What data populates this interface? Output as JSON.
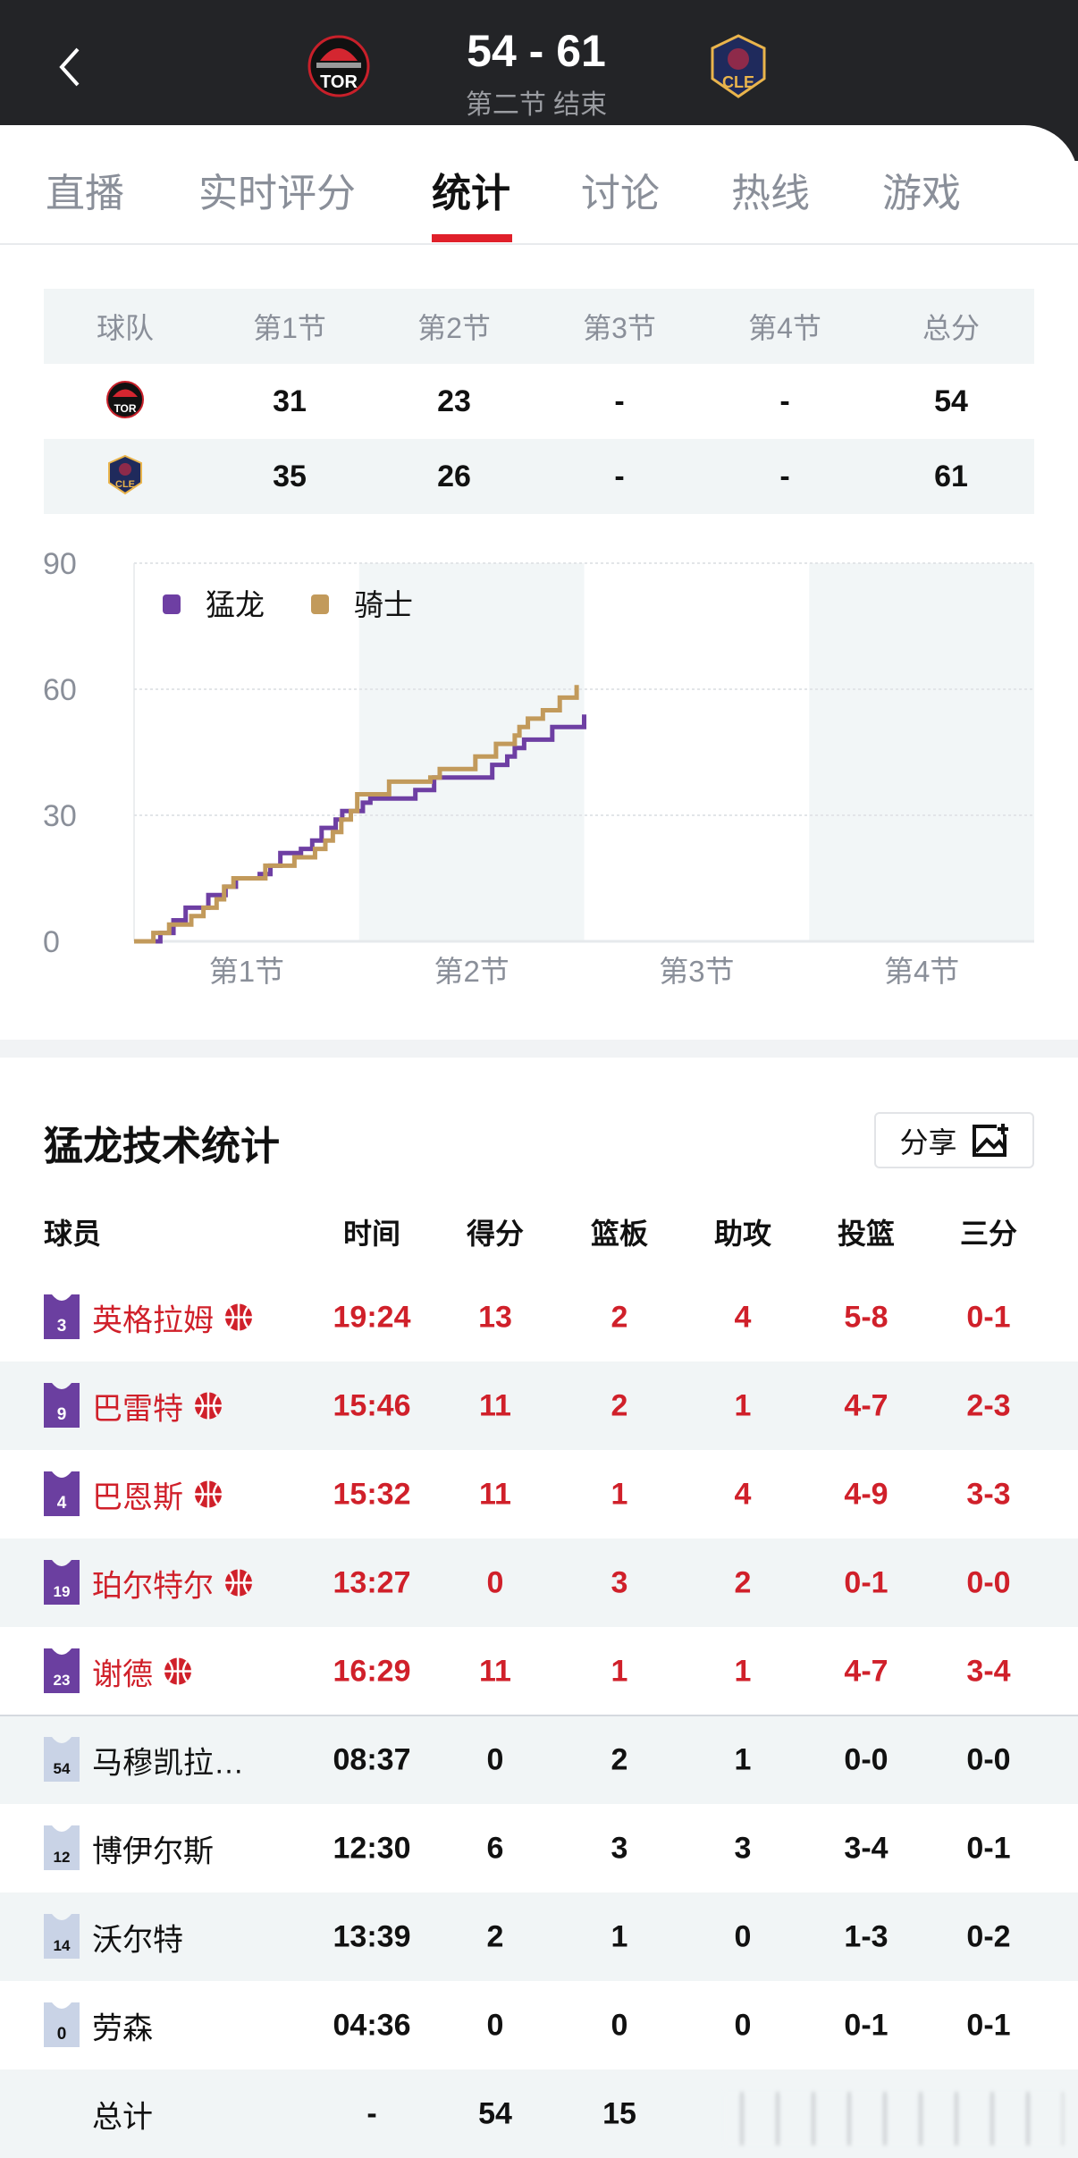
{
  "header": {
    "score": "54 - 61",
    "status": "第二节 结束",
    "home_logo_text": "TOR",
    "away_logo_text": "CLE",
    "back_icon": "chevron-left-icon"
  },
  "tabs": [
    {
      "label": "直播"
    },
    {
      "label": "实时评分"
    },
    {
      "label": "统计",
      "active": true
    },
    {
      "label": "讨论"
    },
    {
      "label": "热线"
    },
    {
      "label": "游戏"
    }
  ],
  "quarter_table": {
    "headers": [
      "球队",
      "第1节",
      "第2节",
      "第3节",
      "第4节",
      "总分"
    ],
    "rows": [
      {
        "team": "TOR",
        "values": [
          "31",
          "23",
          "-",
          "-",
          "54"
        ]
      },
      {
        "team": "CLE",
        "values": [
          "35",
          "26",
          "-",
          "-",
          "61"
        ]
      }
    ]
  },
  "chart_data": {
    "type": "line",
    "step": true,
    "x_unit": "minutes",
    "xlim": [
      0,
      48
    ],
    "ylim": [
      0,
      90
    ],
    "yticks": [
      "0",
      "30",
      "60",
      "90"
    ],
    "xtick_labels": [
      "第1节",
      "第2节",
      "第3节",
      "第4节"
    ],
    "grid": true,
    "legend_position": "top-left",
    "series": [
      {
        "name": "猛龙",
        "color": "#6e3fa3",
        "points": [
          [
            0,
            0
          ],
          [
            1.4,
            2
          ],
          [
            2.1,
            5
          ],
          [
            2.75,
            8
          ],
          [
            3.96,
            11
          ],
          [
            4.88,
            13
          ],
          [
            5.43,
            15
          ],
          [
            6.7,
            16
          ],
          [
            7.27,
            18
          ],
          [
            7.8,
            21
          ],
          [
            8.9,
            22
          ],
          [
            9.5,
            24
          ],
          [
            10.0,
            27
          ],
          [
            10.75,
            29
          ],
          [
            11.1,
            31
          ],
          [
            12.2,
            33
          ],
          [
            12.6,
            34
          ],
          [
            15.0,
            36
          ],
          [
            16.0,
            39
          ],
          [
            19.1,
            42
          ],
          [
            19.9,
            44
          ],
          [
            20.3,
            46
          ],
          [
            20.8,
            48
          ],
          [
            22.3,
            51
          ],
          [
            24.0,
            54
          ]
        ]
      },
      {
        "name": "骑士",
        "color": "#c29a5b",
        "points": [
          [
            0,
            0
          ],
          [
            1.03,
            2
          ],
          [
            1.87,
            4
          ],
          [
            3.05,
            6
          ],
          [
            3.7,
            8
          ],
          [
            4.4,
            10
          ],
          [
            4.8,
            13
          ],
          [
            5.3,
            15
          ],
          [
            7.0,
            18
          ],
          [
            8.55,
            20
          ],
          [
            9.65,
            22
          ],
          [
            10.2,
            24
          ],
          [
            10.6,
            26
          ],
          [
            11.05,
            29
          ],
          [
            11.56,
            31
          ],
          [
            11.9,
            35
          ],
          [
            13.6,
            38
          ],
          [
            15.8,
            39
          ],
          [
            16.3,
            41
          ],
          [
            18.2,
            44
          ],
          [
            19.3,
            47
          ],
          [
            20.3,
            49
          ],
          [
            20.55,
            51
          ],
          [
            21.0,
            53
          ],
          [
            21.8,
            55
          ],
          [
            22.7,
            58
          ],
          [
            23.6,
            61
          ]
        ]
      }
    ]
  },
  "stats": {
    "title": "猛龙技术统计",
    "share_label": "分享",
    "columns": [
      "球员",
      "时间",
      "得分",
      "篮板",
      "助攻",
      "投篮",
      "三分"
    ],
    "colors": {
      "starter_text": "#d0202a",
      "starter_jersey": "#6b3fa0",
      "bench_jersey": "#c9d3e6"
    },
    "players": [
      {
        "number": "3",
        "name": "英格拉姆",
        "starter": true,
        "stats": [
          "19:24",
          "13",
          "2",
          "4",
          "5-8",
          "0-1"
        ]
      },
      {
        "number": "9",
        "name": "巴雷特",
        "starter": true,
        "stats": [
          "15:46",
          "11",
          "2",
          "1",
          "4-7",
          "2-3"
        ]
      },
      {
        "number": "4",
        "name": "巴恩斯",
        "starter": true,
        "stats": [
          "15:32",
          "11",
          "1",
          "4",
          "4-9",
          "3-3"
        ]
      },
      {
        "number": "19",
        "name": "珀尔特尔",
        "starter": true,
        "stats": [
          "13:27",
          "0",
          "3",
          "2",
          "0-1",
          "0-0"
        ]
      },
      {
        "number": "23",
        "name": "谢德",
        "starter": true,
        "stats": [
          "16:29",
          "11",
          "1",
          "1",
          "4-7",
          "3-4"
        ]
      },
      {
        "number": "54",
        "name": "马穆凯拉…",
        "starter": false,
        "stats": [
          "08:37",
          "0",
          "2",
          "1",
          "0-0",
          "0-0"
        ]
      },
      {
        "number": "12",
        "name": "博伊尔斯",
        "starter": false,
        "stats": [
          "12:30",
          "6",
          "3",
          "3",
          "3-4",
          "0-1"
        ]
      },
      {
        "number": "14",
        "name": "沃尔特",
        "starter": false,
        "stats": [
          "13:39",
          "2",
          "1",
          "0",
          "1-3",
          "0-2"
        ]
      },
      {
        "number": "0",
        "name": "劳森",
        "starter": false,
        "stats": [
          "04:36",
          "0",
          "0",
          "0",
          "0-1",
          "0-1"
        ]
      }
    ],
    "total": {
      "label": "总计",
      "stats": [
        "-",
        "54",
        "15"
      ]
    }
  }
}
